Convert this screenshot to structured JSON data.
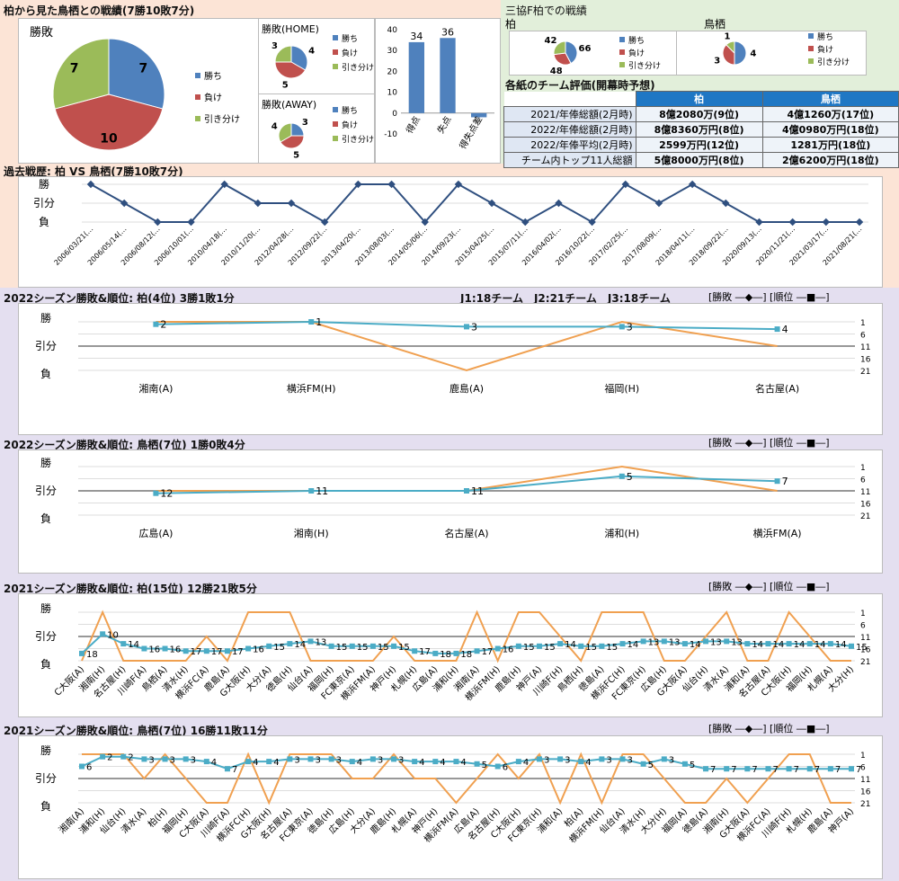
{
  "top": {
    "title_main": "柏から見た鳥栖との戦績(7勝10敗7分)",
    "pie_main_title": "勝敗",
    "legend": [
      "勝ち",
      "負け",
      "引き分け"
    ],
    "home_title": "勝敗(HOME)",
    "away_title": "勝敗(AWAY)",
    "right_title": "三協F柏での戦績",
    "kashiwa_label": "柏",
    "tosu_label": "鳥栖",
    "eval_title": "各紙のチーム評価(開幕時予想)",
    "eval_head": [
      "",
      "柏",
      "鳥栖"
    ],
    "eval_rows": [
      [
        "2021/年俸総額(2月時)",
        "8億2080万(9位)",
        "4億1260万(17位)"
      ],
      [
        "2022/年俸総額(2月時)",
        "8億8360万円(8位)",
        "4億0980万円(18位)"
      ],
      [
        "2022/年俸平均(2月時)",
        "2599万円(12位)",
        "1281万円(18位)"
      ],
      [
        "チーム内トップ11人総額",
        "5億8000万円(8位)",
        "2億6200万円(18位)"
      ]
    ]
  },
  "history": {
    "title": "過去戦歴: 柏 VS 鳥栖(7勝10敗7分)",
    "ylabels": [
      "勝",
      "引分",
      "負"
    ]
  },
  "s22k": {
    "title": "2022シーズン勝敗&順位: 柏(4位) 3勝1敗1分",
    "note": "J1:18チーム　J2:21チーム　J3:18チーム",
    "legend": "[勝敗 ―◆―] [順位 ―■―]",
    "ylabels": [
      "勝",
      "引分",
      "負"
    ]
  },
  "s22t": {
    "title": "2022シーズン勝敗&順位: 鳥栖(7位) 1勝0敗4分",
    "legend": "[勝敗 ―◆―] [順位 ―■―]",
    "ylabels": [
      "勝",
      "引分",
      "負"
    ]
  },
  "s21k": {
    "title": "2021シーズン勝敗&順位: 柏(15位) 12勝21敗5分",
    "legend": "[勝敗 ―◆―] [順位 ―■―]",
    "ylabels": [
      "勝",
      "引分",
      "負"
    ]
  },
  "s21t": {
    "title": "2021シーズン勝敗&順位: 鳥栖(7位) 16勝11敗11分",
    "legend": "[勝敗 ―◆―] [順位 ―■―]",
    "ylabels": [
      "勝",
      "引分",
      "負"
    ]
  },
  "chart_data": [
    {
      "id": "pie_main",
      "type": "pie",
      "labels": [
        "勝ち",
        "負け",
        "引き分け"
      ],
      "values": [
        7,
        10,
        7
      ],
      "colors": [
        "#4f81bd",
        "#c0504d",
        "#9bbb59"
      ]
    },
    {
      "id": "pie_home",
      "type": "pie",
      "labels": [
        "勝ち",
        "負け",
        "引き分け"
      ],
      "values": [
        4,
        5,
        3
      ],
      "colors": [
        "#4f81bd",
        "#c0504d",
        "#9bbb59"
      ]
    },
    {
      "id": "pie_away",
      "type": "pie",
      "labels": [
        "勝ち",
        "負け",
        "引き分け"
      ],
      "values": [
        3,
        5,
        4
      ],
      "colors": [
        "#4f81bd",
        "#c0504d",
        "#9bbb59"
      ]
    },
    {
      "id": "bar_goals",
      "type": "bar",
      "categories": [
        "得点",
        "失点",
        "得失点差"
      ],
      "values": [
        34,
        36,
        -2
      ],
      "ylim": [
        -10,
        40
      ],
      "yticks": [
        -10,
        0,
        10,
        20,
        30,
        40
      ],
      "color": "#4f81bd"
    },
    {
      "id": "pie_kashiwa_home",
      "type": "pie",
      "labels": [
        "勝ち",
        "負け",
        "引き分け"
      ],
      "values": [
        66,
        48,
        42
      ],
      "colors": [
        "#4f81bd",
        "#c0504d",
        "#9bbb59"
      ]
    },
    {
      "id": "pie_tosu_at_kashiwa",
      "type": "pie",
      "labels": [
        "勝ち",
        "負け",
        "引き分け"
      ],
      "values": [
        4,
        3,
        1
      ],
      "colors": [
        "#4f81bd",
        "#c0504d",
        "#9bbb59"
      ]
    },
    {
      "id": "history",
      "type": "line",
      "categories": [
        "2006/03/21(",
        "2006/05/14(",
        "2006/08/12(",
        "2006/10/01(",
        "2010/04/18(",
        "2010/11/20(",
        "2012/04/28(",
        "2012/09/22(",
        "2013/04/20(",
        "2013/08/03(",
        "2014/05/06(",
        "2014/09/23(",
        "2015/04/25(",
        "2015/07/11(",
        "2016/04/02(",
        "2016/10/22(",
        "2017/02/25(",
        "2017/08/09(",
        "2018/04/11(",
        "2018/09/22(",
        "2020/09/13(",
        "2020/11/21(",
        "2021/03/17(",
        "2021/08/21("
      ],
      "values": [
        1,
        0,
        -1,
        -1,
        1,
        0,
        0,
        -1,
        1,
        1,
        -1,
        1,
        0,
        -1,
        0,
        -1,
        1,
        0,
        1,
        0,
        -1,
        -1,
        -1,
        -1
      ],
      "color": "#2f4f7f"
    },
    {
      "id": "s22k",
      "type": "line",
      "categories": [
        "湘南(A)",
        "横浜FM(H)",
        "鹿島(A)",
        "福岡(H)",
        "名古屋(A)"
      ],
      "series": [
        {
          "name": "勝敗",
          "values": [
            1,
            1,
            -1,
            1,
            0
          ],
          "color": "#f0a050"
        },
        {
          "name": "順位",
          "values": [
            2,
            1,
            3,
            3,
            4
          ],
          "color": "#4bacc6"
        }
      ],
      "rank_ticks": [
        1,
        6,
        11,
        16,
        21
      ]
    },
    {
      "id": "s22t",
      "type": "line",
      "categories": [
        "広島(A)",
        "湘南(H)",
        "名古屋(A)",
        "浦和(H)",
        "横浜FM(A)"
      ],
      "series": [
        {
          "name": "勝敗",
          "values": [
            0,
            0,
            0,
            1,
            0
          ],
          "color": "#f0a050"
        },
        {
          "name": "順位",
          "values": [
            12,
            11,
            11,
            5,
            7
          ],
          "color": "#4bacc6"
        }
      ],
      "rank_ticks": [
        1,
        6,
        11,
        16,
        21
      ]
    },
    {
      "id": "s21k",
      "type": "line",
      "categories": [
        "C大阪(A)",
        "湘南(H)",
        "名古屋(H)",
        "川崎F(A)",
        "鳥栖(A)",
        "清水(H)",
        "横浜FC(A)",
        "鹿島(A)",
        "G大阪(H)",
        "大分(A)",
        "徳島(H)",
        "仙台(A)",
        "福岡(H)",
        "FC東京(A)",
        "横浜FM(A)",
        "神戸(H)",
        "札幌(H)",
        "広島(A)",
        "浦和(H)",
        "湘南(A)",
        "横浜FM(H)",
        "鹿島(H)",
        "神戸(A)",
        "川崎F(H)",
        "鳥栖(H)",
        "徳島(A)",
        "横浜FC(H)",
        "FC東京(H)",
        "広島(H)",
        "G大阪(A)",
        "仙台(H)",
        "清水(A)",
        "浦和(A)",
        "名古屋(A)",
        "C大阪(H)",
        "福岡(H)",
        "札幌(A)",
        "大分(H)"
      ],
      "series": [
        {
          "name": "勝敗",
          "values": [
            -1,
            1,
            -1,
            -1,
            -1,
            -1,
            0,
            -1,
            1,
            1,
            1,
            -1,
            -1,
            -1,
            -1,
            0,
            -1,
            -1,
            -1,
            1,
            -1,
            1,
            1,
            0,
            -1,
            1,
            1,
            1,
            -1,
            -1,
            0,
            1,
            -1,
            -1,
            1,
            0,
            -1,
            -1
          ],
          "color": "#f0a050"
        },
        {
          "name": "順位",
          "values": [
            18,
            10,
            14,
            16,
            16,
            17,
            17,
            17,
            16,
            15,
            14,
            13,
            15,
            15,
            15,
            15,
            17,
            18,
            18,
            17,
            16,
            15,
            15,
            14,
            15,
            15,
            14,
            13,
            13,
            14,
            13,
            13,
            14,
            14,
            14,
            14,
            14,
            15
          ],
          "color": "#4bacc6"
        }
      ],
      "rank_ticks": [
        1,
        6,
        11,
        16,
        21
      ]
    },
    {
      "id": "s21t",
      "type": "line",
      "categories": [
        "湘南(A)",
        "浦和(H)",
        "仙台(H)",
        "清水(A)",
        "柏(H)",
        "福岡(H)",
        "C大阪(A)",
        "川崎F(A)",
        "横浜FC(H)",
        "G大阪(H)",
        "名古屋(A)",
        "FC東京(A)",
        "徳島(H)",
        "広島(H)",
        "大分(A)",
        "鹿島(H)",
        "札幌(A)",
        "神戸(H)",
        "横浜FM(A)",
        "広島(A)",
        "名古屋(H)",
        "C大阪(H)",
        "FC東京(H)",
        "浦和(A)",
        "柏(A)",
        "横浜FM(H)",
        "仙台(A)",
        "清水(H)",
        "大分(H)",
        "福岡(A)",
        "徳島(A)",
        "湘南(H)",
        "G大阪(A)",
        "横浜FC(A)",
        "川崎F(H)",
        "札幌(H)",
        "鹿島(A)",
        "神戸(A)"
      ],
      "series": [
        {
          "name": "勝敗",
          "values": [
            1,
            1,
            1,
            0,
            1,
            0,
            -1,
            -1,
            1,
            -1,
            1,
            1,
            1,
            0,
            0,
            1,
            0,
            0,
            -1,
            0,
            1,
            0,
            1,
            -1,
            1,
            -1,
            1,
            1,
            0,
            -1,
            -1,
            0,
            -1,
            0,
            1,
            1,
            -1,
            -1
          ],
          "color": "#f0a050"
        },
        {
          "name": "順位",
          "values": [
            6,
            2,
            2,
            3,
            3,
            3,
            4,
            7,
            4,
            4,
            3,
            3,
            3,
            4,
            3,
            3,
            4,
            4,
            4,
            5,
            6,
            4,
            3,
            3,
            4,
            3,
            3,
            5,
            3,
            5,
            7,
            7,
            7,
            7,
            7,
            7,
            7,
            7
          ],
          "color": "#4bacc6"
        }
      ],
      "rank_ticks": [
        1,
        6,
        11,
        16,
        21
      ]
    }
  ]
}
